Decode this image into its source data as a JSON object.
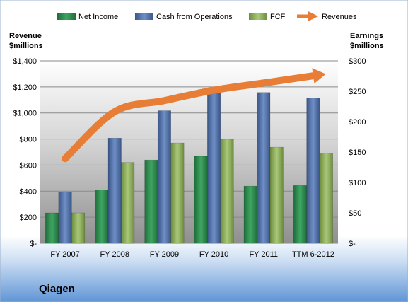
{
  "chart_data": {
    "type": "bar",
    "categories": [
      "FY 2007",
      "FY 2008",
      "FY 2009",
      "FY 2010",
      "FY 2011",
      "TTM 6-2012"
    ],
    "series": [
      {
        "name": "Net Income",
        "axis": "right",
        "values": [
          50,
          88,
          137,
          143,
          94,
          95
        ]
      },
      {
        "name": "Cash from Operations",
        "axis": "right",
        "values": [
          84,
          173,
          218,
          252,
          248,
          239
        ]
      },
      {
        "name": "FCF",
        "axis": "right",
        "values": [
          50,
          133,
          165,
          171,
          158,
          148
        ]
      },
      {
        "name": "Revenues",
        "axis": "left",
        "type": "line",
        "values": [
          650,
          1010,
          1095,
          1175,
          1230,
          1285
        ]
      }
    ],
    "left_axis": {
      "label_line1": "Revenue",
      "label_line2": "$millions",
      "ylim": [
        0,
        1400
      ],
      "ticks": [
        "$-",
        "$200",
        "$400",
        "$600",
        "$800",
        "$1,000",
        "$1,200",
        "$1,400"
      ]
    },
    "right_axis": {
      "label_line1": "Earnings",
      "label_line2": "$millions",
      "ylim": [
        0,
        300
      ],
      "ticks": [
        "$-",
        "$50",
        "$100",
        "$150",
        "$200",
        "$250",
        "$300"
      ]
    },
    "legend_position": "top",
    "grid": true,
    "company": "Qiagen",
    "colors": {
      "net_income": "#2e8b4e",
      "cash_from_operations": "#4f6fa8",
      "fcf": "#8fae5a",
      "revenues": "#e87d35"
    }
  }
}
